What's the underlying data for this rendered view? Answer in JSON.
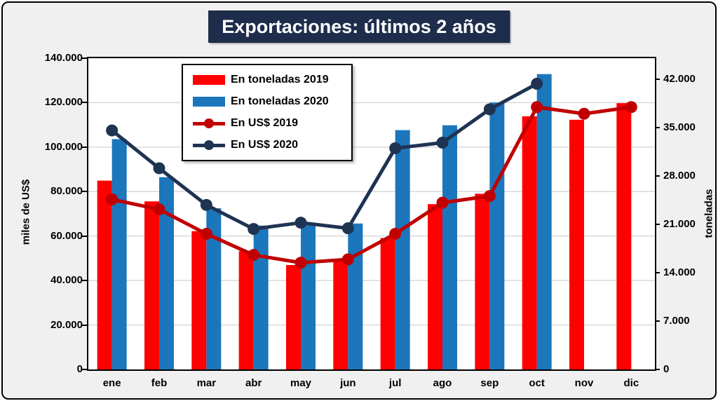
{
  "title": "Exportaciones: últimos 2 años",
  "colors": {
    "red": "#FF0000",
    "blue": "#1B76BC",
    "dark_red": "#C00000",
    "navy": "#1F3352",
    "title_bg": "#1E2D4B",
    "canvas_bg": "#F0F0F0",
    "plot_bg": "#FFFFFF",
    "gridline": "#D9D9D9",
    "border": "#000000"
  },
  "chart_data": {
    "type": "bar+line combo",
    "title": "Exportaciones: últimos 2 años",
    "categories": [
      "ene",
      "feb",
      "mar",
      "abr",
      "may",
      "jun",
      "jul",
      "ago",
      "sep",
      "oct",
      "nov",
      "dic"
    ],
    "series": [
      {
        "name": "En toneladas 2019",
        "type": "bar",
        "axis": "right",
        "color_key": "red",
        "values": [
          27300,
          24300,
          20000,
          17100,
          15100,
          15600,
          19000,
          23900,
          25400,
          36600,
          36100,
          38500
        ]
      },
      {
        "name": "En toneladas 2020",
        "type": "bar",
        "axis": "right",
        "color_key": "blue",
        "values": [
          33300,
          27800,
          23300,
          20800,
          21200,
          21100,
          34600,
          35300,
          38600,
          42700,
          null,
          null
        ]
      },
      {
        "name": "En US$ 2019",
        "type": "line",
        "axis": "left",
        "color_key": "dark_red",
        "values": [
          76500,
          72000,
          61000,
          51500,
          48000,
          49500,
          61000,
          75000,
          78000,
          118000,
          115000,
          118000
        ]
      },
      {
        "name": "En US$ 2020",
        "type": "line",
        "axis": "left",
        "color_key": "navy",
        "values": [
          107500,
          90500,
          74000,
          63200,
          66000,
          63500,
          99500,
          102000,
          117000,
          128500,
          null,
          null
        ]
      }
    ],
    "left_axis": {
      "title": "miles de US$",
      "min": 0,
      "max": 140000,
      "ticks": [
        {
          "label": "0",
          "value": 0
        },
        {
          "label": "20.000",
          "value": 20000
        },
        {
          "label": "40.000",
          "value": 40000
        },
        {
          "label": "60.000",
          "value": 60000
        },
        {
          "label": "80.000",
          "value": 80000
        },
        {
          "label": "100.000",
          "value": 100000
        },
        {
          "label": "120.000",
          "value": 120000
        },
        {
          "label": "140.000",
          "value": 140000
        }
      ]
    },
    "right_axis": {
      "title": "toneladas",
      "min": 0,
      "max": 45000,
      "ticks": [
        {
          "label": "0",
          "value": 0
        },
        {
          "label": "7.000",
          "value": 7000
        },
        {
          "label": "14.000",
          "value": 14000
        },
        {
          "label": "21.000",
          "value": 21000
        },
        {
          "label": "28.000",
          "value": 28000
        },
        {
          "label": "35.000",
          "value": 35000
        },
        {
          "label": "42.000",
          "value": 42000
        }
      ]
    },
    "legend_position": "inside-top-left",
    "grid": "horizontal"
  }
}
